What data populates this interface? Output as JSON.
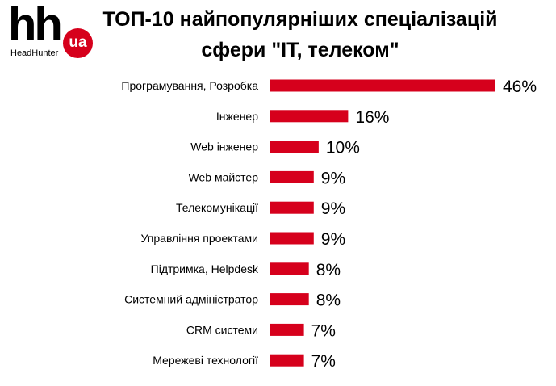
{
  "logo": {
    "main": "hh",
    "badge": "ua",
    "subtitle": "HeadHunter"
  },
  "colors": {
    "bar": "#d6001c",
    "text": "#000000",
    "brand": "#d6001c"
  },
  "chart_data": {
    "type": "bar",
    "orientation": "horizontal",
    "title": "ТОП-10 найпопулярніших спеціалізацій сфери \"IT, телеком\"",
    "title_lines": [
      "ТОП-10 найпопулярніших спеціалізацій",
      "сфери \"IT, телеком\""
    ],
    "categories": [
      "Програмування, Розробка",
      "Інженер",
      "Web інженер",
      "Web майстер",
      "Телекомунікації",
      "Управління проектами",
      "Підтримка, Helpdesk",
      "Системний адміністратор",
      "CRM системи",
      "Мережеві технології"
    ],
    "values": [
      46,
      16,
      10,
      9,
      9,
      9,
      8,
      8,
      7,
      7
    ],
    "value_labels": [
      "46%",
      "16%",
      "10%",
      "9%",
      "9%",
      "9%",
      "8%",
      "8%",
      "7%",
      "7%"
    ],
    "unit": "%",
    "grid": false,
    "legend": "none"
  }
}
